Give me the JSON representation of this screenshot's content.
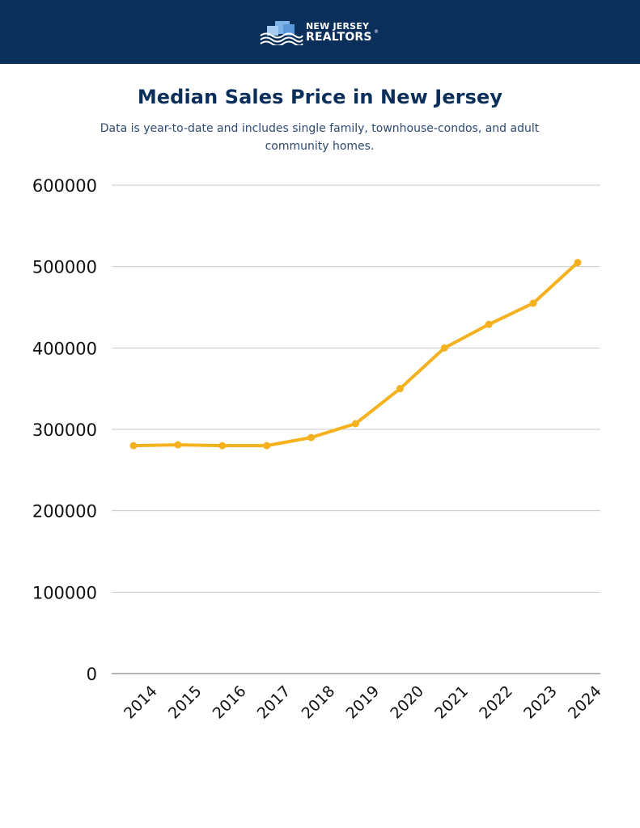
{
  "header": {
    "logo_line1": "NEW JERSEY",
    "logo_line2": "REALTORS",
    "logo_reg": "®",
    "background": "#0b2f5b"
  },
  "title": "Median Sales Price in New Jersey",
  "subtitle": "Data is year-to-date and includes single family, townhouse-condos, and adult community homes.",
  "colors": {
    "line": "#f5b11e",
    "title": "#0b2f5b",
    "grid": "#c8c8c8",
    "axis": "#888888"
  },
  "chart_data": {
    "type": "line",
    "title": "Median Sales Price in New Jersey",
    "xlabel": "",
    "ylabel": "",
    "categories": [
      "2014",
      "2015",
      "2016",
      "2017",
      "2018",
      "2019",
      "2020",
      "2021",
      "2022",
      "2023",
      "2024"
    ],
    "series": [
      {
        "values": [
          280000,
          281000,
          280000,
          280000,
          290000,
          307000,
          350000,
          400000,
          429000,
          455000,
          505000
        ]
      }
    ],
    "yticks": [
      "0",
      "100000",
      "200000",
      "300000",
      "400000",
      "500000",
      "600000"
    ],
    "ylim": [
      0,
      600000
    ],
    "grid": true,
    "legend": "none"
  }
}
